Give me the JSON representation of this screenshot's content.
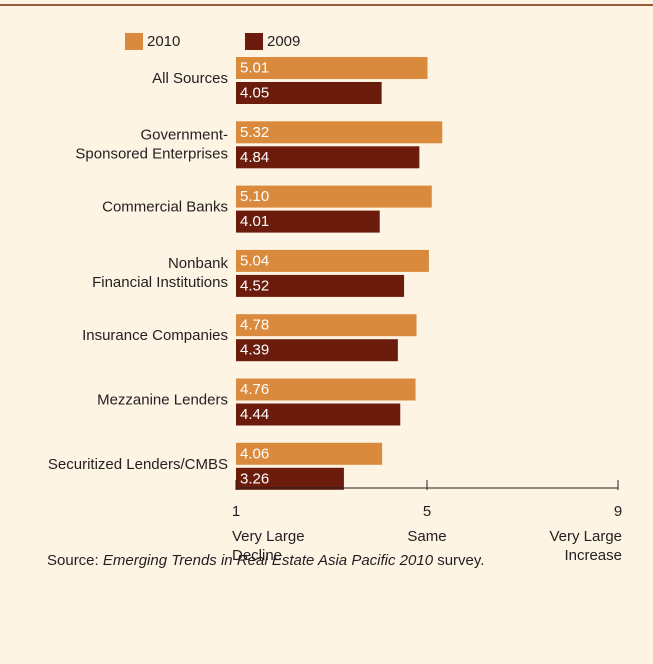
{
  "chart_data": {
    "type": "hbar",
    "categories": [
      [
        "All Sources"
      ],
      [
        "Government-",
        "Sponsored Enterprises"
      ],
      [
        "Commercial Banks"
      ],
      [
        "Nonbank",
        "Financial Institutions"
      ],
      [
        "Insurance Companies"
      ],
      [
        "Mezzanine Lenders"
      ],
      [
        "Securitized Lenders/CMBS"
      ]
    ],
    "series": [
      {
        "name": "2010",
        "color": "#d98a3d",
        "values": [
          5.01,
          5.32,
          5.1,
          5.04,
          4.78,
          4.76,
          4.06
        ],
        "value_labels": [
          "5.01",
          "5.32",
          "5.10",
          "5.04",
          "4.78",
          "4.76",
          "4.06"
        ]
      },
      {
        "name": "2009",
        "color": "#6b1c0c",
        "values": [
          4.05,
          4.84,
          4.01,
          4.52,
          4.39,
          4.44,
          3.26
        ],
        "value_labels": [
          "4.05",
          "4.84",
          "4.01",
          "4.52",
          "4.39",
          "4.44",
          "3.26"
        ]
      }
    ],
    "xlim": [
      1,
      9
    ],
    "xticks": [
      1,
      5,
      9
    ],
    "xtick_descriptions": [
      [
        "Very Large",
        "Decline"
      ],
      [
        "Same"
      ],
      [
        "Very Large",
        "Increase"
      ]
    ],
    "source": {
      "prefix": "Source:",
      "title": "Emerging Trends in Real Estate Asia Pacific 2010",
      "suffix": "survey."
    }
  }
}
